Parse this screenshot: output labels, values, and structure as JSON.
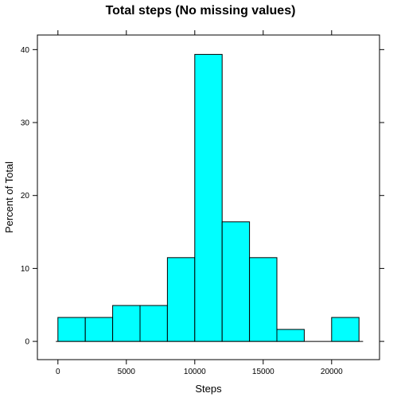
{
  "chart_data": {
    "type": "bar",
    "subtype": "histogram",
    "title": "Total steps (No missing values)",
    "xlabel": "Steps",
    "ylabel": "Percent of Total",
    "xlim": [
      -1500,
      23500
    ],
    "ylim": [
      -2.5,
      42
    ],
    "bin_width": 2000,
    "bins": [
      {
        "start": 0,
        "end": 2000,
        "value": 3.28
      },
      {
        "start": 2000,
        "end": 4000,
        "value": 3.28
      },
      {
        "start": 4000,
        "end": 6000,
        "value": 4.92
      },
      {
        "start": 6000,
        "end": 8000,
        "value": 4.92
      },
      {
        "start": 8000,
        "end": 10000,
        "value": 11.48
      },
      {
        "start": 10000,
        "end": 12000,
        "value": 39.34
      },
      {
        "start": 12000,
        "end": 14000,
        "value": 16.39
      },
      {
        "start": 14000,
        "end": 16000,
        "value": 11.48
      },
      {
        "start": 16000,
        "end": 18000,
        "value": 1.64
      },
      {
        "start": 18000,
        "end": 20000,
        "value": 0
      },
      {
        "start": 20000,
        "end": 22000,
        "value": 3.28
      }
    ],
    "x_ticks": [
      0,
      5000,
      10000,
      15000,
      20000
    ],
    "x_tick_labels": [
      "0",
      "5000",
      "10000",
      "15000",
      "20000"
    ],
    "y_ticks": [
      0,
      10,
      20,
      30,
      40
    ],
    "y_tick_labels": [
      "0",
      "10",
      "20",
      "30",
      "40"
    ],
    "grid": false,
    "legend": "none",
    "bar_color": "#00FFFF",
    "bar_outline": "#000000"
  }
}
